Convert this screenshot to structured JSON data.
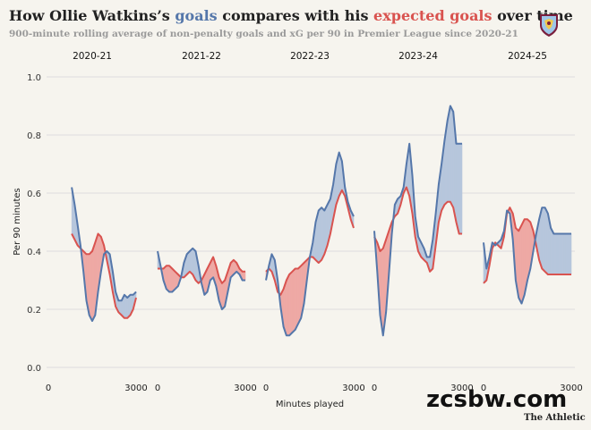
{
  "header": {
    "title_part1": "How Ollie Watkins’s ",
    "title_goals": "goals",
    "title_part2": " compares with his ",
    "title_xg": "expected goals",
    "title_part3": " over time",
    "subtitle": "900-minute rolling average of non-penalty goals and xG per 90 in Premier League since 2020-21"
  },
  "footer": {
    "watermark": "zcsbw.com",
    "source": "The Athletic"
  },
  "colors": {
    "goals": "#5577aa",
    "xg": "#d9534f",
    "goals_fill": "#b7c6dc",
    "xg_fill": "#eea9a5",
    "grid": "#dddddd",
    "background": "#f6f4ee"
  },
  "chart_data": {
    "type": "area",
    "title": "How Ollie Watkins’s goals compares with his expected goals over time",
    "xlabel": "Minutes played",
    "ylabel": "Per 90 minutes",
    "ylim": [
      0,
      1.0
    ],
    "yticks": [
      "0.0",
      "0.2",
      "0.4",
      "0.6",
      "0.8",
      "1.0"
    ],
    "xlim": [
      0,
      3000
    ],
    "xticks": [
      "0",
      "3000"
    ],
    "grid": true,
    "facets": [
      {
        "season": "2020-21",
        "series": [
          {
            "name": "goals",
            "x": [
              800,
              900,
              1000,
              1100,
              1200,
              1300,
              1400,
              1500,
              1600,
              1700,
              1800,
              1900,
              2000,
              2100,
              2200,
              2300,
              2400,
              2500,
              2600,
              2700,
              2800,
              2900,
              3000
            ],
            "values": [
              0.62,
              0.56,
              0.49,
              0.42,
              0.33,
              0.23,
              0.18,
              0.16,
              0.18,
              0.26,
              0.33,
              0.39,
              0.4,
              0.39,
              0.33,
              0.26,
              0.23,
              0.23,
              0.25,
              0.24,
              0.25,
              0.25,
              0.26
            ]
          },
          {
            "name": "xG",
            "x": [
              800,
              900,
              1000,
              1100,
              1200,
              1300,
              1400,
              1500,
              1600,
              1700,
              1800,
              1900,
              2000,
              2100,
              2200,
              2300,
              2400,
              2500,
              2600,
              2700,
              2800,
              2900,
              3000
            ],
            "values": [
              0.46,
              0.44,
              0.42,
              0.41,
              0.4,
              0.39,
              0.39,
              0.4,
              0.43,
              0.46,
              0.45,
              0.42,
              0.37,
              0.32,
              0.26,
              0.21,
              0.19,
              0.18,
              0.17,
              0.17,
              0.18,
              0.2,
              0.24
            ]
          }
        ]
      },
      {
        "season": "2021-22",
        "series": [
          {
            "name": "goals",
            "x": [
              0,
              100,
              200,
              300,
              400,
              500,
              600,
              700,
              800,
              900,
              1000,
              1100,
              1200,
              1300,
              1400,
              1500,
              1600,
              1700,
              1800,
              1900,
              2000,
              2100,
              2200,
              2300,
              2400,
              2500,
              2600,
              2700,
              2800,
              2900,
              3000
            ],
            "values": [
              0.4,
              0.35,
              0.3,
              0.27,
              0.26,
              0.26,
              0.27,
              0.28,
              0.31,
              0.36,
              0.39,
              0.4,
              0.41,
              0.4,
              0.35,
              0.29,
              0.25,
              0.26,
              0.3,
              0.31,
              0.28,
              0.23,
              0.2,
              0.21,
              0.26,
              0.31,
              0.32,
              0.33,
              0.32,
              0.3,
              0.3
            ]
          },
          {
            "name": "xG",
            "x": [
              0,
              100,
              200,
              300,
              400,
              500,
              600,
              700,
              800,
              900,
              1000,
              1100,
              1200,
              1300,
              1400,
              1500,
              1600,
              1700,
              1800,
              1900,
              2000,
              2100,
              2200,
              2300,
              2400,
              2500,
              2600,
              2700,
              2800,
              2900,
              3000
            ],
            "values": [
              0.34,
              0.34,
              0.34,
              0.35,
              0.35,
              0.34,
              0.33,
              0.32,
              0.31,
              0.31,
              0.32,
              0.33,
              0.32,
              0.3,
              0.29,
              0.3,
              0.32,
              0.34,
              0.36,
              0.38,
              0.35,
              0.31,
              0.29,
              0.3,
              0.33,
              0.36,
              0.37,
              0.36,
              0.34,
              0.33,
              0.33
            ]
          }
        ]
      },
      {
        "season": "2022-23",
        "series": [
          {
            "name": "goals",
            "x": [
              0,
              100,
              200,
              300,
              400,
              500,
              600,
              700,
              800,
              900,
              1000,
              1100,
              1200,
              1300,
              1400,
              1500,
              1600,
              1700,
              1800,
              1900,
              2000,
              2100,
              2200,
              2300,
              2400,
              2500,
              2600,
              2700,
              2800,
              2900,
              3000
            ],
            "values": [
              0.3,
              0.35,
              0.39,
              0.37,
              0.3,
              0.21,
              0.14,
              0.11,
              0.11,
              0.12,
              0.13,
              0.15,
              0.17,
              0.22,
              0.3,
              0.38,
              0.43,
              0.5,
              0.54,
              0.55,
              0.54,
              0.56,
              0.58,
              0.63,
              0.7,
              0.74,
              0.71,
              0.62,
              0.57,
              0.54,
              0.52
            ]
          },
          {
            "name": "xG",
            "x": [
              0,
              100,
              200,
              300,
              400,
              500,
              600,
              700,
              800,
              900,
              1000,
              1100,
              1200,
              1300,
              1400,
              1500,
              1600,
              1700,
              1800,
              1900,
              2000,
              2100,
              2200,
              2300,
              2400,
              2500,
              2600,
              2700,
              2800,
              2900,
              3000
            ],
            "values": [
              0.33,
              0.34,
              0.33,
              0.3,
              0.26,
              0.25,
              0.27,
              0.3,
              0.32,
              0.33,
              0.34,
              0.34,
              0.35,
              0.36,
              0.37,
              0.38,
              0.38,
              0.37,
              0.36,
              0.37,
              0.39,
              0.42,
              0.46,
              0.51,
              0.56,
              0.59,
              0.61,
              0.59,
              0.55,
              0.51,
              0.48
            ]
          }
        ]
      },
      {
        "season": "2023-24",
        "series": [
          {
            "name": "goals",
            "x": [
              0,
              100,
              200,
              300,
              400,
              500,
              600,
              700,
              800,
              900,
              1000,
              1100,
              1200,
              1300,
              1400,
              1500,
              1600,
              1700,
              1800,
              1900,
              2000,
              2100,
              2200,
              2300,
              2400,
              2500,
              2600,
              2700,
              2800,
              2900,
              3000
            ],
            "values": [
              0.47,
              0.33,
              0.18,
              0.11,
              0.19,
              0.32,
              0.46,
              0.56,
              0.58,
              0.59,
              0.62,
              0.7,
              0.77,
              0.66,
              0.52,
              0.45,
              0.43,
              0.41,
              0.38,
              0.38,
              0.44,
              0.53,
              0.63,
              0.7,
              0.78,
              0.85,
              0.9,
              0.88,
              0.77,
              0.77,
              0.77
            ]
          },
          {
            "name": "xG",
            "x": [
              0,
              100,
              200,
              300,
              400,
              500,
              600,
              700,
              800,
              900,
              1000,
              1100,
              1200,
              1300,
              1400,
              1500,
              1600,
              1700,
              1800,
              1900,
              2000,
              2100,
              2200,
              2300,
              2400,
              2500,
              2600,
              2700,
              2800,
              2900,
              3000
            ],
            "values": [
              0.45,
              0.43,
              0.4,
              0.41,
              0.44,
              0.47,
              0.5,
              0.52,
              0.53,
              0.56,
              0.6,
              0.62,
              0.59,
              0.53,
              0.45,
              0.4,
              0.38,
              0.37,
              0.36,
              0.33,
              0.34,
              0.42,
              0.5,
              0.54,
              0.56,
              0.57,
              0.57,
              0.55,
              0.5,
              0.46,
              0.46
            ]
          }
        ]
      },
      {
        "season": "2024-25",
        "series": [
          {
            "name": "goals",
            "x": [
              0,
              100,
              200,
              300,
              400,
              500,
              600,
              700,
              800,
              900,
              1000,
              1100,
              1200,
              1300,
              1400,
              1500,
              1600,
              1700,
              1800,
              1900,
              2000,
              2100,
              2200,
              2300,
              2400,
              2500,
              2600,
              2700,
              2800,
              2900,
              3000
            ],
            "values": [
              0.43,
              0.34,
              0.38,
              0.43,
              0.42,
              0.43,
              0.44,
              0.47,
              0.54,
              0.53,
              0.44,
              0.3,
              0.24,
              0.22,
              0.25,
              0.3,
              0.34,
              0.4,
              0.46,
              0.51,
              0.55,
              0.55,
              0.53,
              0.48,
              0.46,
              0.46,
              0.46,
              0.46,
              0.46,
              0.46,
              0.46
            ]
          },
          {
            "name": "xG",
            "x": [
              0,
              100,
              200,
              300,
              400,
              500,
              600,
              700,
              800,
              900,
              1000,
              1100,
              1200,
              1300,
              1400,
              1500,
              1600,
              1700,
              1800,
              1900,
              2000,
              2100,
              2200,
              2300,
              2400,
              2500,
              2600,
              2700,
              2800,
              2900,
              3000
            ],
            "values": [
              0.29,
              0.3,
              0.35,
              0.41,
              0.43,
              0.42,
              0.41,
              0.45,
              0.53,
              0.55,
              0.53,
              0.48,
              0.47,
              0.49,
              0.51,
              0.51,
              0.5,
              0.47,
              0.42,
              0.37,
              0.34,
              0.33,
              0.32,
              0.32,
              0.32,
              0.32,
              0.32,
              0.32,
              0.32,
              0.32,
              0.32
            ]
          }
        ]
      }
    ]
  }
}
